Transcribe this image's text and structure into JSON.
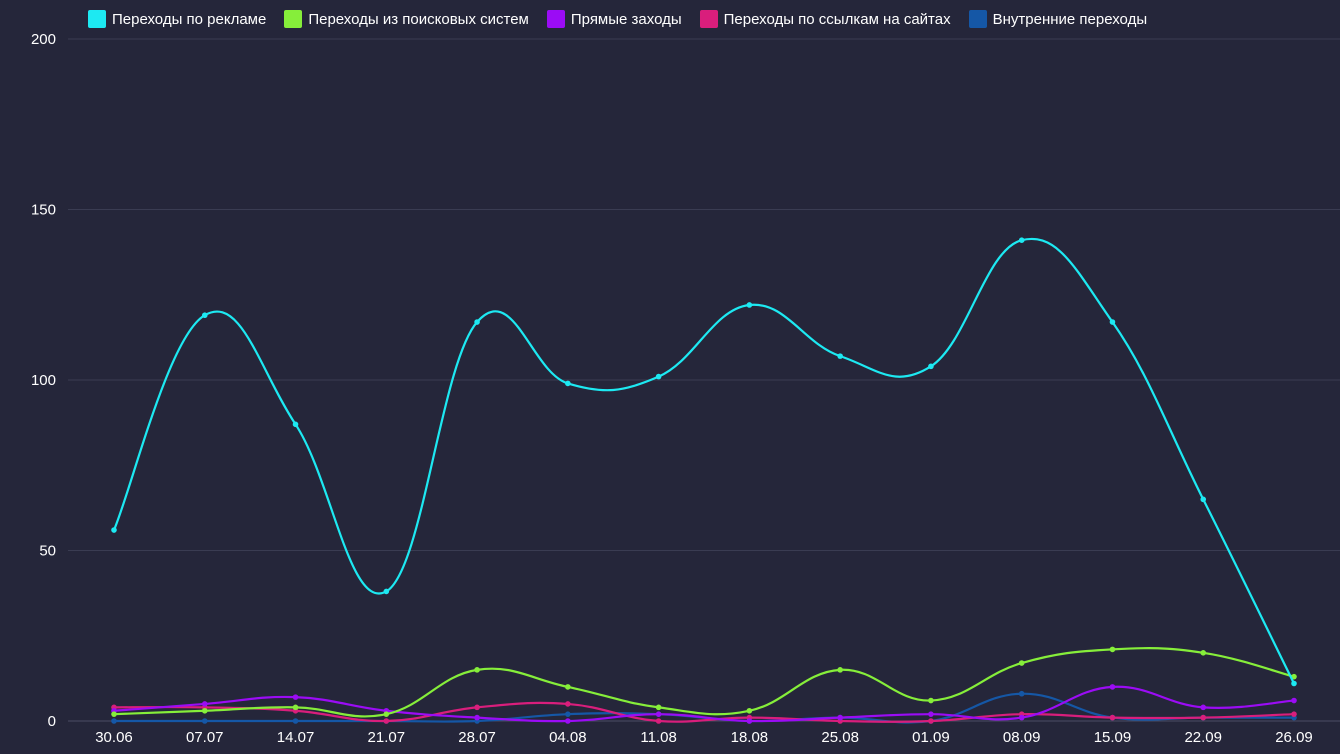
{
  "chart_data": {
    "type": "line",
    "title": "",
    "xlabel": "",
    "ylabel": "",
    "ylim": [
      0,
      200
    ],
    "yticks": [
      "0",
      "50",
      "100",
      "150",
      "200"
    ],
    "categories": [
      "30.06",
      "07.07",
      "14.07",
      "21.07",
      "28.07",
      "04.08",
      "11.08",
      "18.08",
      "25.08",
      "01.09",
      "08.09",
      "15.09",
      "22.09",
      "26.09"
    ],
    "series": [
      {
        "name": "Переходы по рекламе",
        "color": "#1de9f2",
        "values": [
          56,
          119,
          87,
          38,
          117,
          99,
          101,
          122,
          107,
          104,
          141,
          117,
          65,
          11
        ]
      },
      {
        "name": "Переходы из поисковых систем",
        "color": "#86ee3a",
        "values": [
          2,
          3,
          4,
          2,
          15,
          10,
          4,
          3,
          15,
          6,
          17,
          21,
          20,
          13
        ]
      },
      {
        "name": "Прямые заходы",
        "color": "#9b0cf5",
        "values": [
          3,
          5,
          7,
          3,
          1,
          0,
          2,
          0,
          1,
          2,
          1,
          10,
          4,
          6
        ]
      },
      {
        "name": "Переходы по ссылкам на сайтах",
        "color": "#d91e7c",
        "values": [
          4,
          4,
          3,
          0,
          4,
          5,
          0,
          1,
          0,
          0,
          2,
          1,
          1,
          2
        ]
      },
      {
        "name": "Внутренние переходы",
        "color": "#1557a6",
        "values": [
          0,
          0,
          0,
          0,
          0,
          2,
          2,
          0,
          1,
          0,
          8,
          1,
          1,
          1
        ]
      }
    ],
    "legend": "top",
    "grid": true
  }
}
